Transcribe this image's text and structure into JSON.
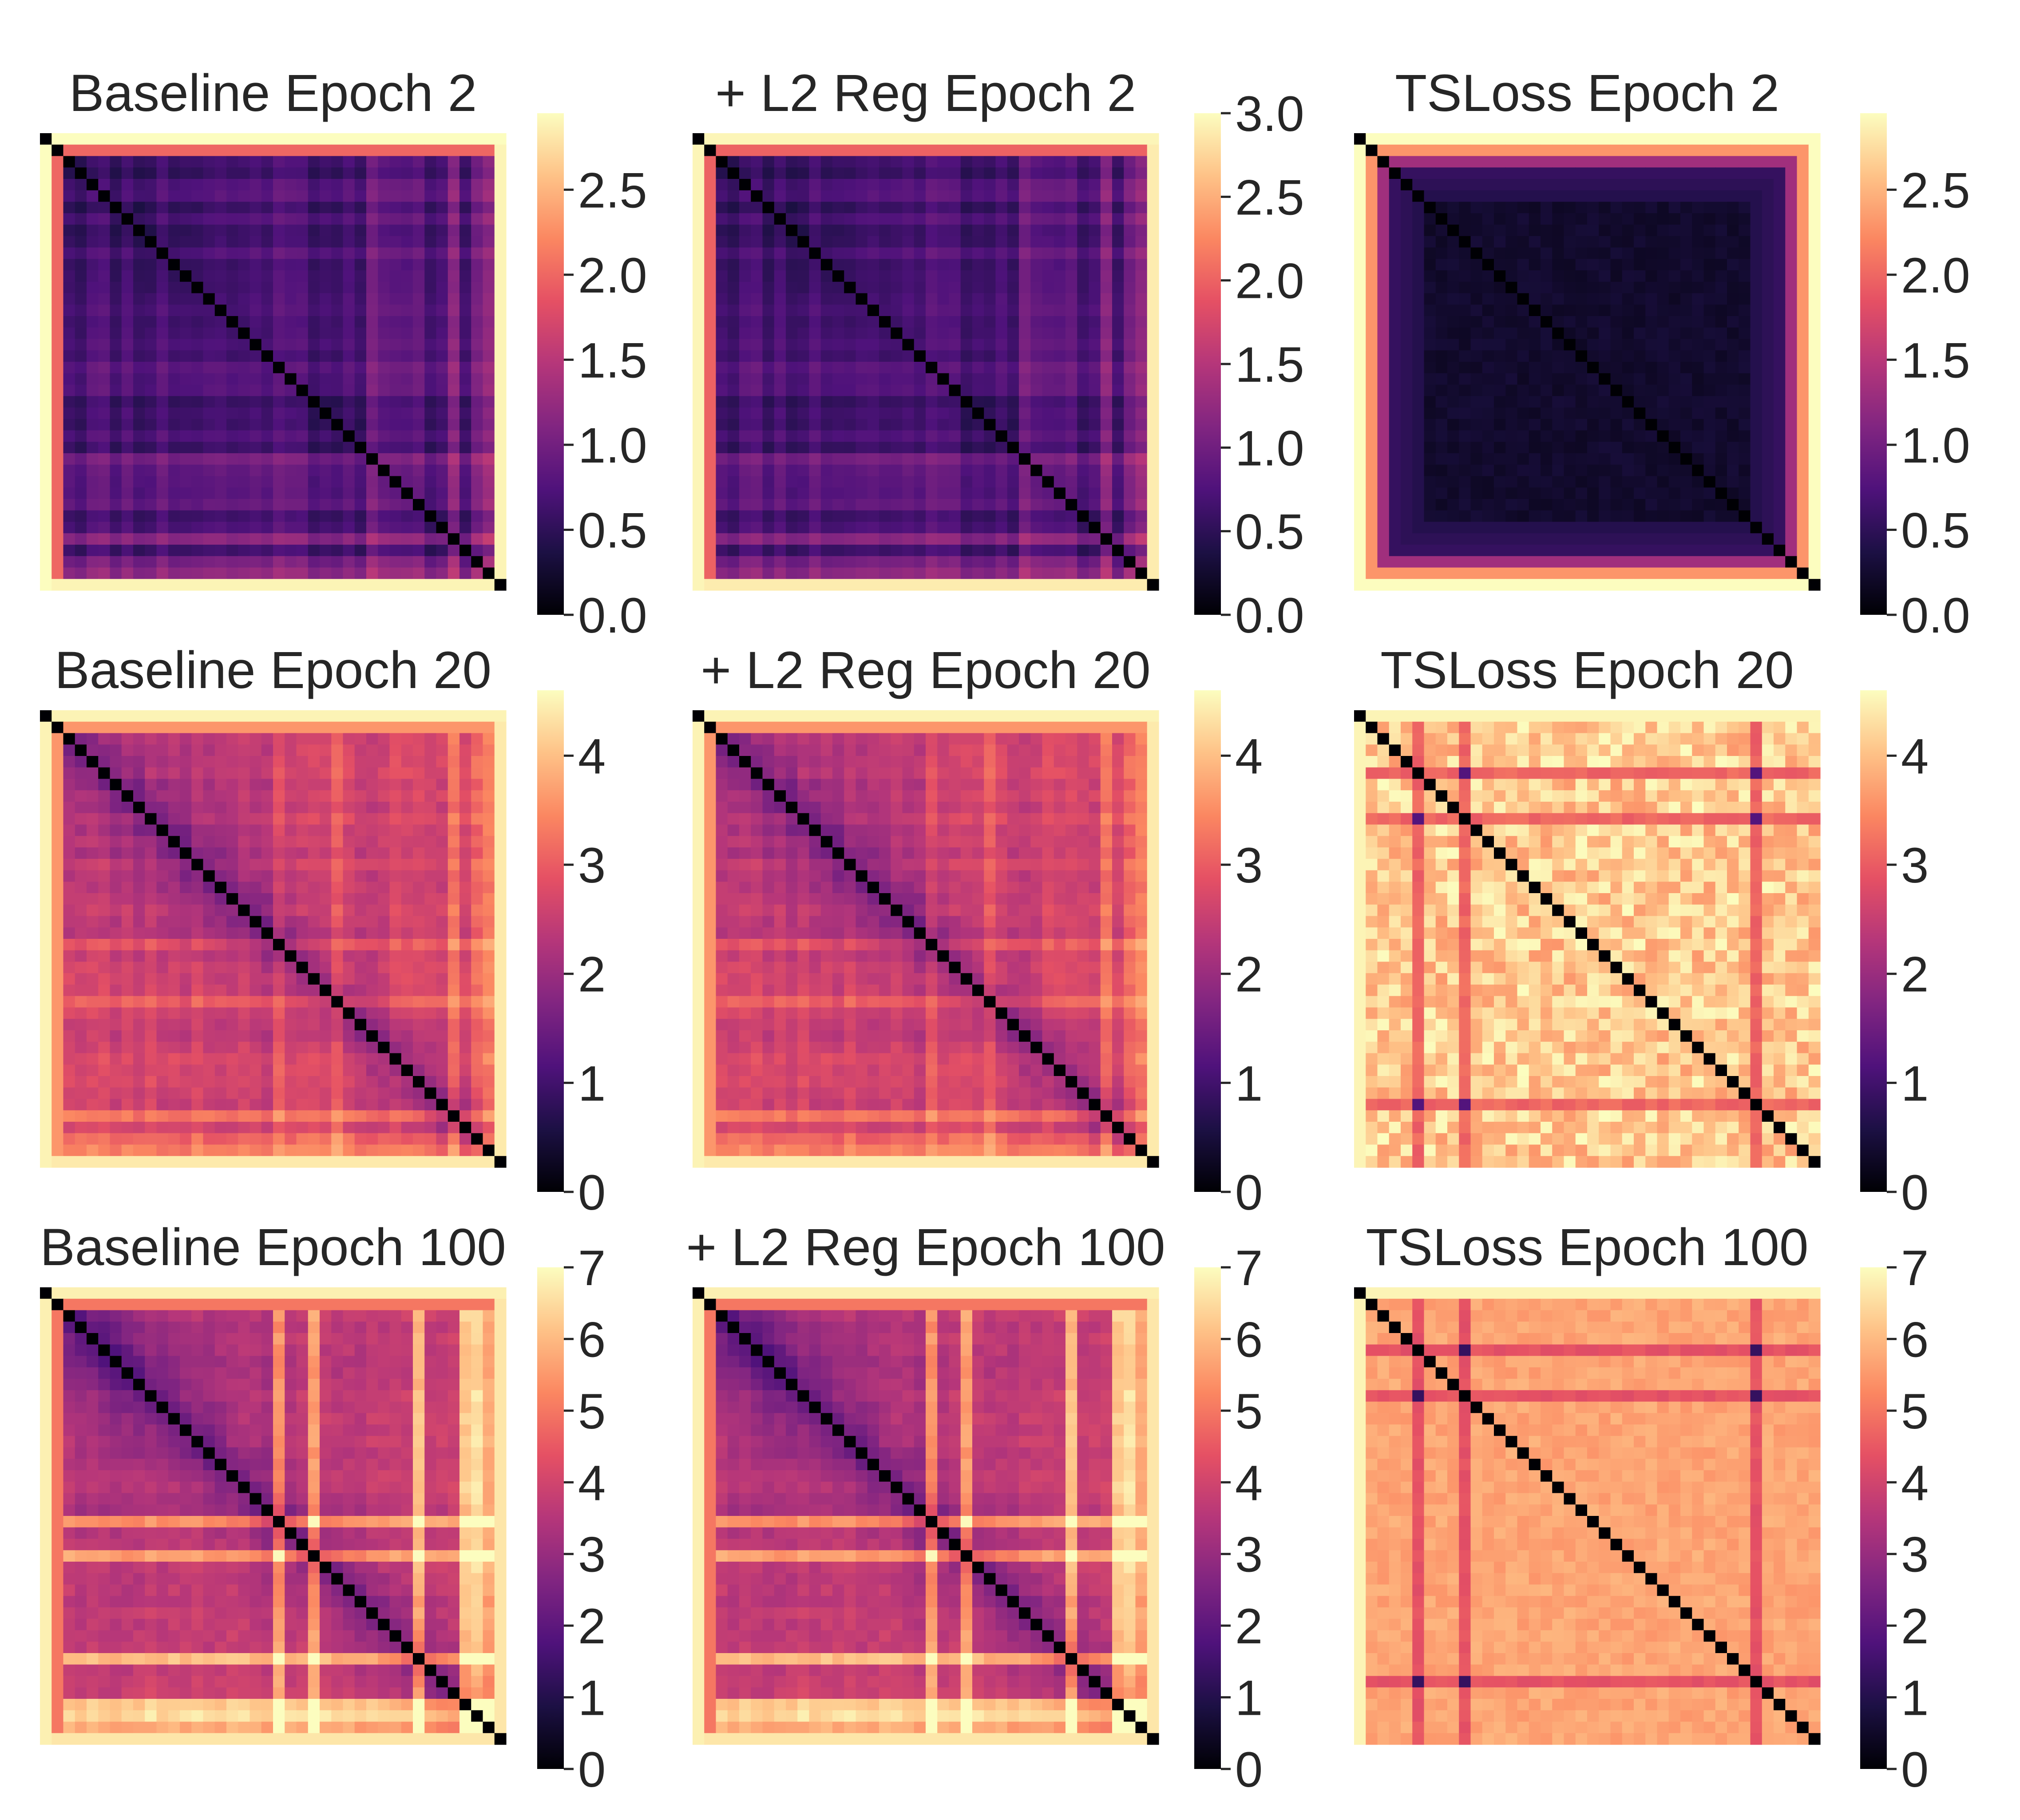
{
  "figure": {
    "colormap": "magma",
    "colormap_stops": [
      "#000004",
      "#1c1044",
      "#4f127b",
      "#812581",
      "#b5367a",
      "#e55064",
      "#fb8761",
      "#fec287",
      "#fcfdbf"
    ]
  },
  "chart_data": [
    {
      "type": "heatmap",
      "title": "Baseline Epoch 2",
      "row": 0,
      "col": 0,
      "n": 40,
      "pattern": "baseline",
      "vmin": 0,
      "vmax": 2.95,
      "ticks": [
        {
          "v": 0,
          "label": "0.0"
        },
        {
          "v": 0.5,
          "label": "0.5"
        },
        {
          "v": 1,
          "label": "1.0"
        },
        {
          "v": 1.5,
          "label": "1.5"
        },
        {
          "v": 2,
          "label": "2.0"
        },
        {
          "v": 2.5,
          "label": "2.5"
        }
      ],
      "params": {
        "base": 0.35,
        "diag_near": 0.1,
        "grad": 0.15,
        "stripe_amp": 0.35,
        "edge": 2.95,
        "edge_inner": 2.0,
        "seed": 11,
        "stripes": [
          20,
          28,
          35,
          37,
          38
        ]
      }
    },
    {
      "type": "heatmap",
      "title": "+ L2 Reg Epoch 2",
      "row": 0,
      "col": 1,
      "n": 40,
      "pattern": "baseline",
      "vmin": 0,
      "vmax": 3.0,
      "ticks": [
        {
          "v": 0,
          "label": "0.0"
        },
        {
          "v": 0.5,
          "label": "0.5"
        },
        {
          "v": 1,
          "label": "1.0"
        },
        {
          "v": 1.5,
          "label": "1.5"
        },
        {
          "v": 2,
          "label": "2.0"
        },
        {
          "v": 2.5,
          "label": "2.5"
        },
        {
          "v": 3,
          "label": "3.0"
        }
      ],
      "params": {
        "base": 0.35,
        "diag_near": 0.1,
        "grad": 0.15,
        "stripe_amp": 0.35,
        "edge": 2.95,
        "edge_inner": 2.0,
        "seed": 11,
        "stripes": [
          20,
          28,
          35,
          37,
          38
        ]
      }
    },
    {
      "type": "heatmap",
      "title": "TSLoss Epoch 2",
      "row": 0,
      "col": 2,
      "n": 40,
      "pattern": "tsloss_early",
      "vmin": 0,
      "vmax": 2.95,
      "ticks": [
        {
          "v": 0,
          "label": "0.0"
        },
        {
          "v": 0.5,
          "label": "0.5"
        },
        {
          "v": 1,
          "label": "1.0"
        },
        {
          "v": 1.5,
          "label": "1.5"
        },
        {
          "v": 2,
          "label": "2.0"
        },
        {
          "v": 2.5,
          "label": "2.5"
        }
      ],
      "params": {
        "seed": 5
      }
    },
    {
      "type": "heatmap",
      "title": "Baseline Epoch 20",
      "row": 1,
      "col": 0,
      "n": 40,
      "pattern": "baseline",
      "vmin": 0,
      "vmax": 4.6,
      "ticks": [
        {
          "v": 0,
          "label": "0"
        },
        {
          "v": 1,
          "label": "1"
        },
        {
          "v": 2,
          "label": "2"
        },
        {
          "v": 3,
          "label": "3"
        },
        {
          "v": 4,
          "label": "4"
        }
      ],
      "params": {
        "base": 1.9,
        "diag_near": 0.9,
        "grad": 0.6,
        "stripe_amp": 0.6,
        "edge": 4.5,
        "edge_inner": 3.6,
        "seed": 23,
        "stripes": [
          20,
          25,
          35,
          37,
          38
        ]
      }
    },
    {
      "type": "heatmap",
      "title": "+ L2 Reg Epoch 20",
      "row": 1,
      "col": 1,
      "n": 40,
      "pattern": "baseline",
      "vmin": 0,
      "vmax": 4.6,
      "ticks": [
        {
          "v": 0,
          "label": "0"
        },
        {
          "v": 1,
          "label": "1"
        },
        {
          "v": 2,
          "label": "2"
        },
        {
          "v": 3,
          "label": "3"
        },
        {
          "v": 4,
          "label": "4"
        }
      ],
      "params": {
        "base": 1.9,
        "diag_near": 0.9,
        "grad": 0.6,
        "stripe_amp": 0.6,
        "edge": 4.5,
        "edge_inner": 3.6,
        "seed": 23,
        "stripes": [
          20,
          25,
          35,
          37,
          38
        ]
      }
    },
    {
      "type": "heatmap",
      "title": "TSLoss Epoch 20",
      "row": 1,
      "col": 2,
      "n": 40,
      "pattern": "tsloss",
      "vmin": 0,
      "vmax": 4.6,
      "ticks": [
        {
          "v": 0,
          "label": "0"
        },
        {
          "v": 1,
          "label": "1"
        },
        {
          "v": 2,
          "label": "2"
        },
        {
          "v": 3,
          "label": "3"
        },
        {
          "v": 4,
          "label": "4"
        }
      ],
      "params": {
        "bg": 4.1,
        "bg_noise": 0.5,
        "band": 3.1,
        "cross": 1.2,
        "bands": [
          5,
          9,
          34
        ],
        "minor": 9,
        "seed": 31
      }
    },
    {
      "type": "heatmap",
      "title": "Baseline Epoch 100",
      "row": 2,
      "col": 0,
      "n": 40,
      "pattern": "baseline",
      "vmin": 0,
      "vmax": 7,
      "ticks": [
        {
          "v": 0,
          "label": "0"
        },
        {
          "v": 1,
          "label": "1"
        },
        {
          "v": 2,
          "label": "2"
        },
        {
          "v": 3,
          "label": "3"
        },
        {
          "v": 4,
          "label": "4"
        },
        {
          "v": 5,
          "label": "5"
        },
        {
          "v": 6,
          "label": "6"
        },
        {
          "v": 7,
          "label": "7"
        }
      ],
      "params": {
        "base": 2.7,
        "diag_near": 1.5,
        "grad": 1.0,
        "stripe_amp": 2.6,
        "edge": 6.8,
        "edge_inner": 5.0,
        "seed": 41,
        "stripes": [
          20,
          23,
          32,
          36,
          37,
          38
        ]
      }
    },
    {
      "type": "heatmap",
      "title": "+ L2 Reg Epoch 100",
      "row": 2,
      "col": 1,
      "n": 40,
      "pattern": "baseline",
      "vmin": 0,
      "vmax": 7,
      "ticks": [
        {
          "v": 0,
          "label": "0"
        },
        {
          "v": 1,
          "label": "1"
        },
        {
          "v": 2,
          "label": "2"
        },
        {
          "v": 3,
          "label": "3"
        },
        {
          "v": 4,
          "label": "4"
        },
        {
          "v": 5,
          "label": "5"
        },
        {
          "v": 6,
          "label": "6"
        },
        {
          "v": 7,
          "label": "7"
        }
      ],
      "params": {
        "base": 2.7,
        "diag_near": 1.5,
        "grad": 1.0,
        "stripe_amp": 2.6,
        "edge": 6.8,
        "edge_inner": 5.0,
        "seed": 41,
        "stripes": [
          20,
          23,
          32,
          36,
          37,
          38
        ]
      }
    },
    {
      "type": "heatmap",
      "title": "TSLoss Epoch 100",
      "row": 2,
      "col": 2,
      "n": 40,
      "pattern": "tsloss",
      "vmin": 0,
      "vmax": 7,
      "ticks": [
        {
          "v": 0,
          "label": "0"
        },
        {
          "v": 1,
          "label": "1"
        },
        {
          "v": 2,
          "label": "2"
        },
        {
          "v": 3,
          "label": "3"
        },
        {
          "v": 4,
          "label": "4"
        },
        {
          "v": 5,
          "label": "5"
        },
        {
          "v": 6,
          "label": "6"
        },
        {
          "v": 7,
          "label": "7"
        }
      ],
      "params": {
        "bg": 5.7,
        "bg_noise": 0.25,
        "band": 4.4,
        "cross": 1.3,
        "bands": [
          5,
          9,
          34
        ],
        "minor": 9,
        "seed": 53
      }
    }
  ]
}
